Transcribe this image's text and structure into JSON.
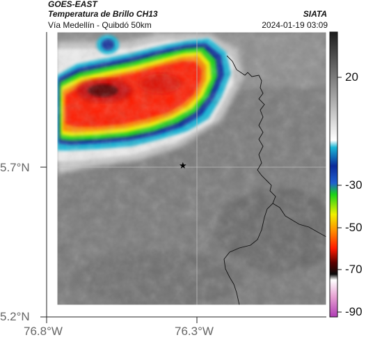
{
  "header": {
    "satellite": "GOES-EAST",
    "product": "Temperatura de Brillo CH13",
    "route": "Vía Medellín - Quibdó 50km",
    "organization": "SIATA",
    "datetime": "2024-01-19 03:09"
  },
  "axes": {
    "lat_ticks": [
      "5.7°N",
      "5.2°N"
    ],
    "lon_ticks": [
      "76.8°W",
      "76.3°W"
    ]
  },
  "marker": {
    "symbol": "★",
    "name": "reference-point"
  },
  "colorbar": {
    "ticks": [
      "20",
      "-30",
      "-50",
      "-70",
      "-90"
    ],
    "colors": {
      "warm_dark": "#1c1c1c",
      "warm_light": "#ffffff",
      "cyan": "#19b6d6",
      "blue": "#0b2a9a",
      "green": "#19d219",
      "yellow": "#f0f000",
      "orange": "#ff8a00",
      "red": "#ff1a00",
      "darkred": "#5a0000",
      "black": "#0a0a0a",
      "pink": "#e6a0d2",
      "magenta": "#b03cb4"
    }
  }
}
